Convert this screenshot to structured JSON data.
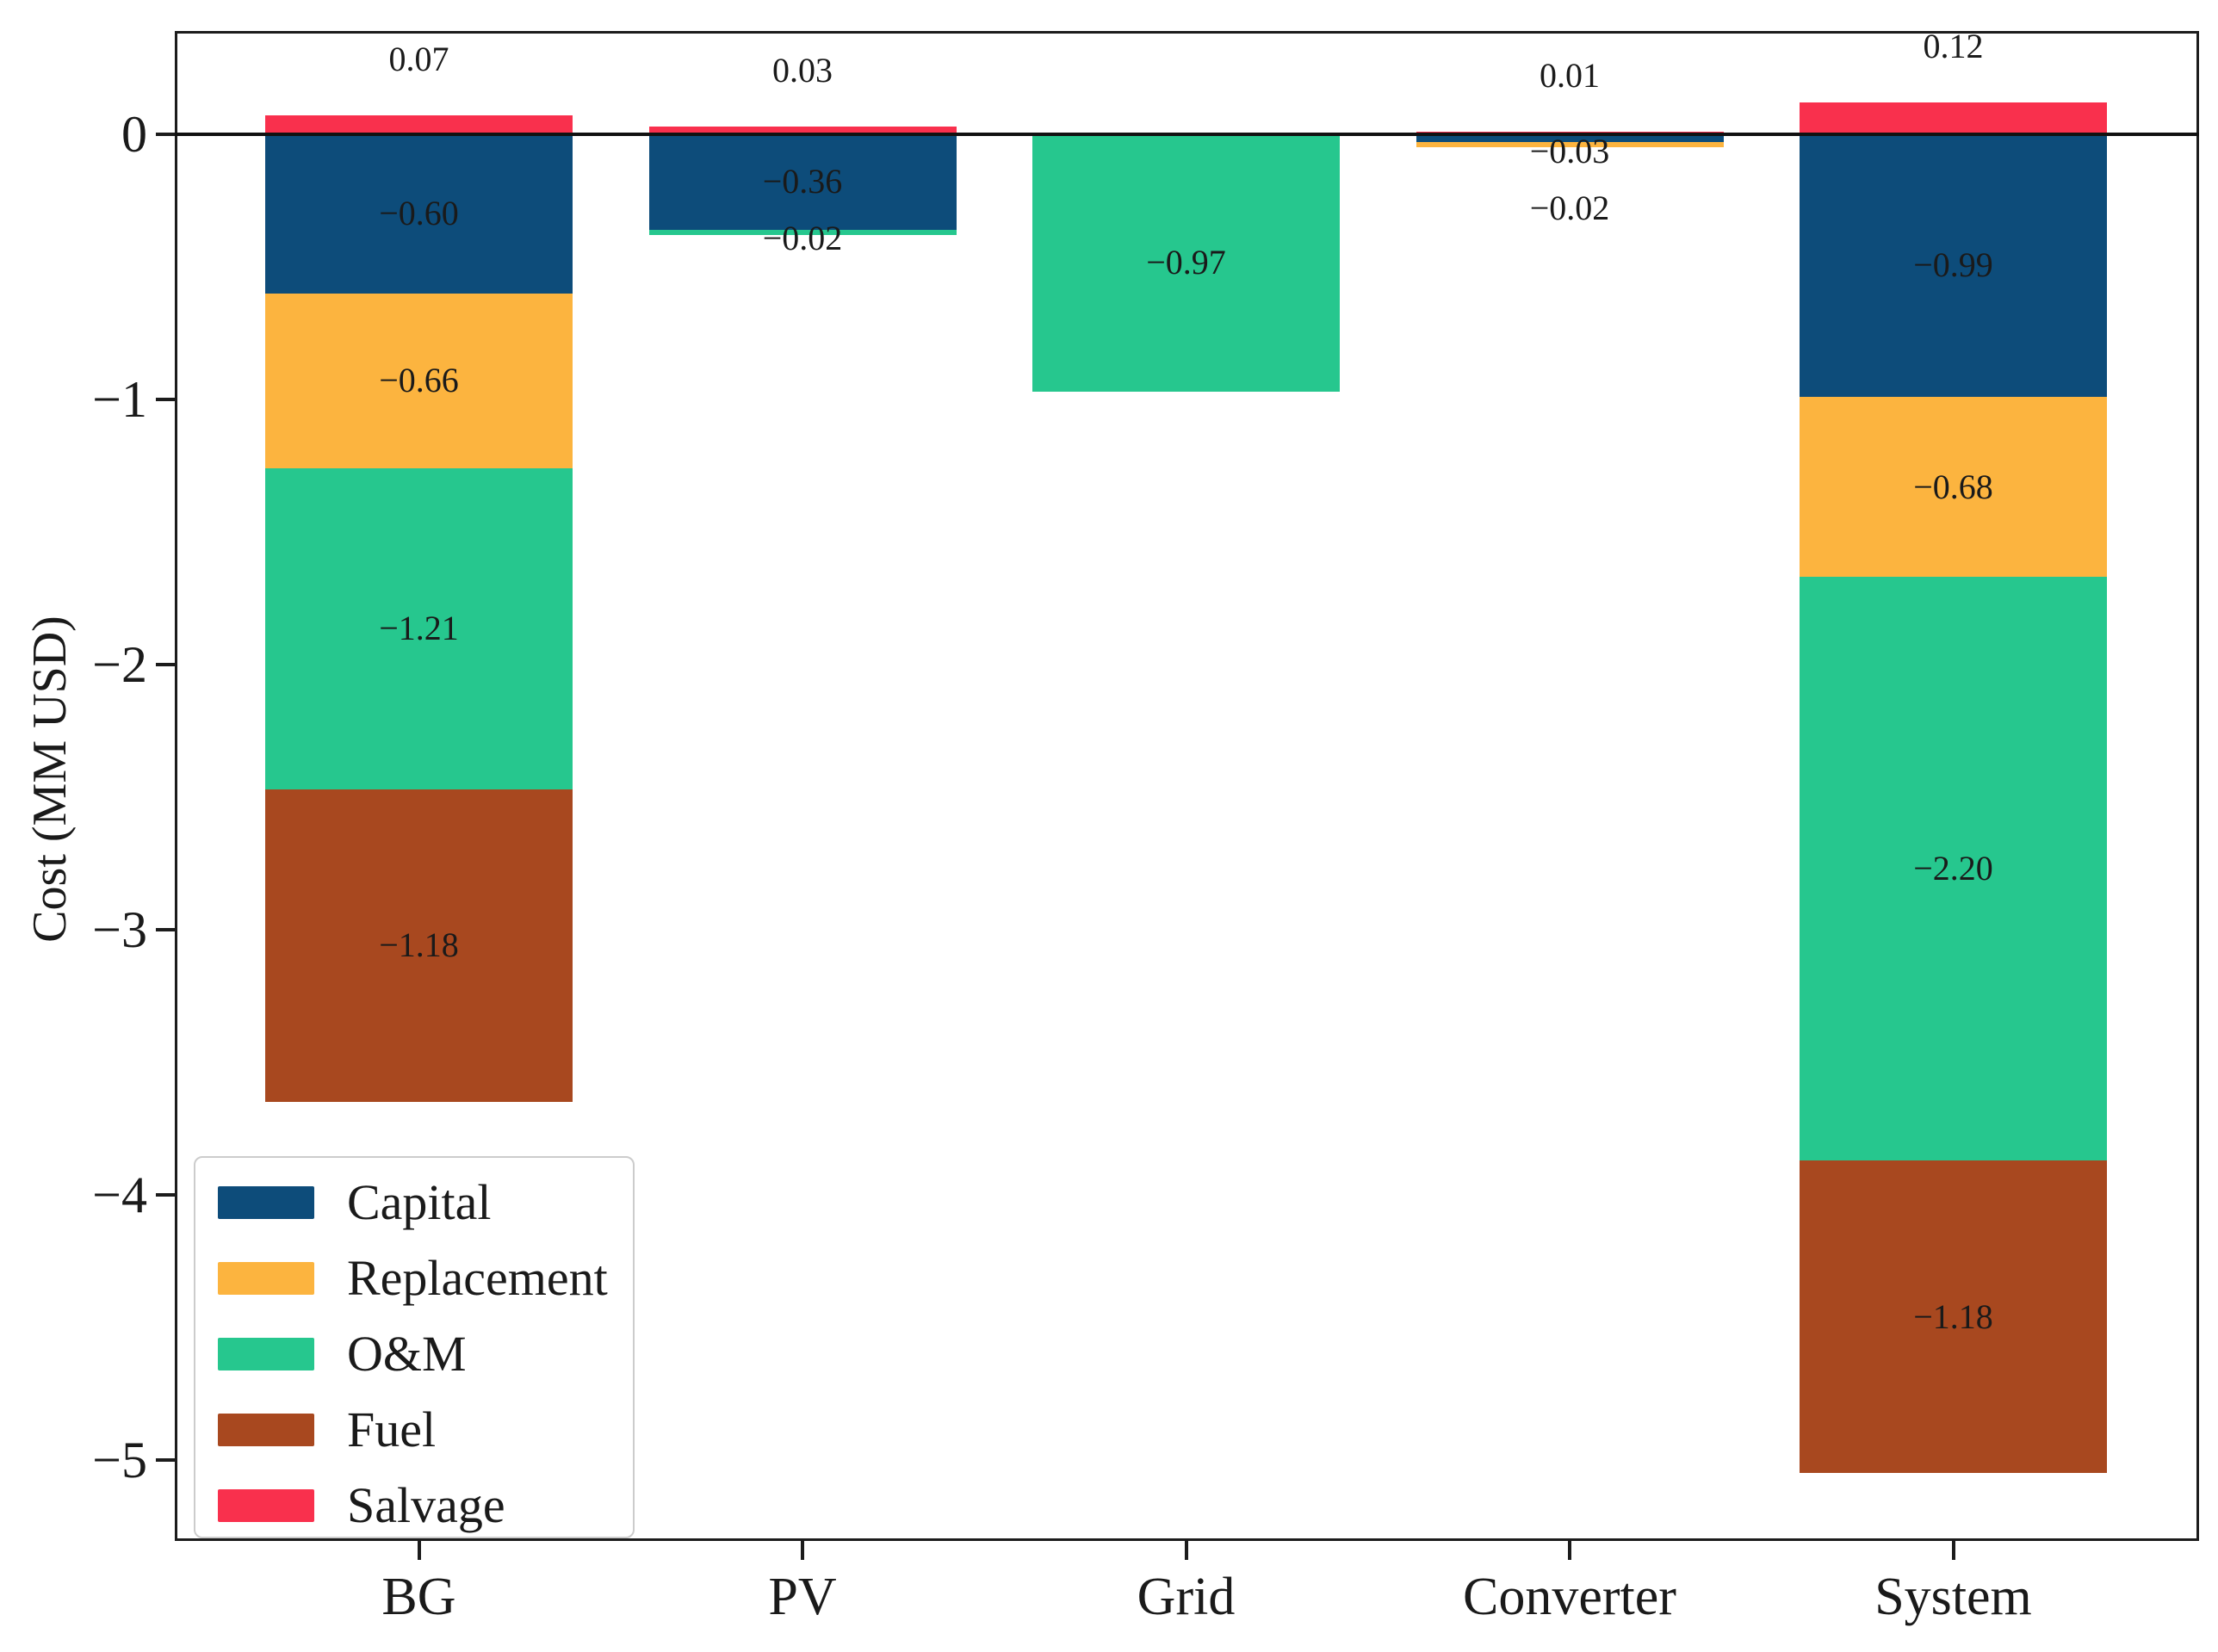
{
  "chart_data": {
    "type": "bar",
    "stacked": true,
    "title": "",
    "xlabel": "",
    "ylabel": "Cost (MM USD)",
    "categories": [
      "BG",
      "PV",
      "Grid",
      "Converter",
      "System"
    ],
    "series": [
      {
        "name": "Capital",
        "color": "#0d4c7a",
        "values": [
          -0.6,
          -0.36,
          0,
          -0.03,
          -0.99
        ],
        "labels": [
          "−0.60",
          "−0.36",
          "",
          "−0.03",
          "−0.99"
        ]
      },
      {
        "name": "Replacement",
        "color": "#fcb43f",
        "values": [
          -0.66,
          0,
          0,
          -0.02,
          -0.68
        ],
        "labels": [
          "−0.66",
          "",
          "",
          "−0.02",
          "−0.68"
        ]
      },
      {
        "name": "O&M",
        "color": "#26c78e",
        "values": [
          -1.21,
          -0.02,
          -0.97,
          0,
          -2.2
        ],
        "labels": [
          "−1.21",
          "−0.02",
          "−0.97",
          "",
          "−2.20"
        ]
      },
      {
        "name": "Fuel",
        "color": "#a8481f",
        "values": [
          -1.18,
          0,
          0,
          0,
          -1.18
        ],
        "labels": [
          "−1.18",
          "",
          "",
          "",
          "−1.18"
        ]
      },
      {
        "name": "Salvage",
        "color": "#f9304d",
        "values": [
          0.07,
          0.03,
          0,
          0.01,
          0.12
        ],
        "labels": [
          "0.07",
          "0.03",
          "",
          "0.01",
          "0.12"
        ]
      }
    ],
    "yticks": {
      "values": [
        0,
        -1,
        -2,
        -3,
        -4,
        -5
      ],
      "labels": [
        "0",
        "−1",
        "−2",
        "−3",
        "−4",
        "−5"
      ]
    },
    "ylim": [
      -5.3,
      0.4
    ],
    "grid": false,
    "legend": {
      "position": "lower left",
      "entries": [
        "Capital",
        "Replacement",
        "O&M",
        "Fuel",
        "Salvage"
      ]
    },
    "axis_color": "#1c1c1c",
    "text_color": "#1a1a1a"
  }
}
